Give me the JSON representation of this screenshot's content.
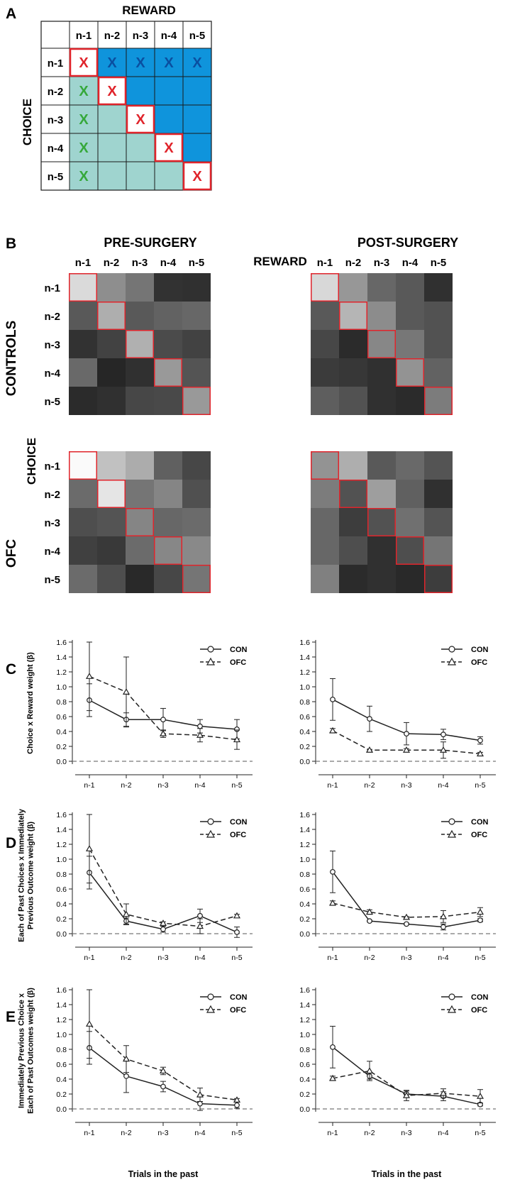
{
  "panel_letters": [
    "A",
    "B",
    "C",
    "D",
    "E"
  ],
  "colors": {
    "red": "#e0242b",
    "blue_fill": "#0f94dc",
    "blue_x": "#0a4fa0",
    "teal_fill": "#9fd4cf",
    "green_x": "#35a83a",
    "grid": "#1a1a1a",
    "zero_line": "#777777"
  },
  "panel_a": {
    "top_label": "REWARD",
    "side_label": "CHOICE",
    "col_labels": [
      "n-1",
      "n-2",
      "n-3",
      "n-4",
      "n-5"
    ],
    "row_labels": [
      "n-1",
      "n-2",
      "n-3",
      "n-4",
      "n-5"
    ],
    "mark": "X"
  },
  "panel_b": {
    "col_titles": [
      "PRE-SURGERY",
      "POST-SURGERY"
    ],
    "reward_label": "REWARD",
    "choice_label": "CHOICE",
    "row_titles": [
      "CONTROLS",
      "OFC"
    ],
    "tick_labels": [
      "n-1",
      "n-2",
      "n-3",
      "n-4",
      "n-5"
    ]
  },
  "chart_data": [
    {
      "type": "heatmap",
      "title": "CONTROLS PRE-SURGERY",
      "xlabel": "REWARD",
      "ylabel": "CHOICE",
      "x": [
        "n-1",
        "n-2",
        "n-3",
        "n-4",
        "n-5"
      ],
      "y": [
        "n-1",
        "n-2",
        "n-3",
        "n-4",
        "n-5"
      ],
      "values": [
        [
          0.86,
          0.53,
          0.42,
          0.13,
          0.12
        ],
        [
          0.3,
          0.67,
          0.3,
          0.34,
          0.36
        ],
        [
          0.13,
          0.2,
          0.68,
          0.24,
          0.2
        ],
        [
          0.37,
          0.08,
          0.12,
          0.58,
          0.28
        ],
        [
          0.1,
          0.12,
          0.22,
          0.23,
          0.58
        ]
      ],
      "scale": "grayscale 0 (black) to 1 (white)"
    },
    {
      "type": "heatmap",
      "title": "CONTROLS POST-SURGERY",
      "xlabel": "REWARD",
      "ylabel": "CHOICE",
      "x": [
        "n-1",
        "n-2",
        "n-3",
        "n-4",
        "n-5"
      ],
      "y": [
        "n-1",
        "n-2",
        "n-3",
        "n-4",
        "n-5"
      ],
      "values": [
        [
          0.85,
          0.57,
          0.36,
          0.3,
          0.12
        ],
        [
          0.3,
          0.7,
          0.52,
          0.3,
          0.27
        ],
        [
          0.22,
          0.1,
          0.5,
          0.43,
          0.27
        ],
        [
          0.17,
          0.15,
          0.12,
          0.55,
          0.34
        ],
        [
          0.32,
          0.27,
          0.12,
          0.1,
          0.45
        ]
      ],
      "scale": "grayscale 0 (black) to 1 (white)"
    },
    {
      "type": "heatmap",
      "title": "OFC PRE-SURGERY",
      "xlabel": "REWARD",
      "ylabel": "CHOICE",
      "x": [
        "n-1",
        "n-2",
        "n-3",
        "n-4",
        "n-5"
      ],
      "y": [
        "n-1",
        "n-2",
        "n-3",
        "n-4",
        "n-5"
      ],
      "values": [
        [
          1.0,
          0.75,
          0.66,
          0.33,
          0.22
        ],
        [
          0.38,
          0.91,
          0.42,
          0.49,
          0.26
        ],
        [
          0.25,
          0.28,
          0.49,
          0.36,
          0.38
        ],
        [
          0.19,
          0.16,
          0.38,
          0.5,
          0.51
        ],
        [
          0.38,
          0.25,
          0.09,
          0.22,
          0.42
        ]
      ],
      "scale": "grayscale 0 (black) to 1 (white)"
    },
    {
      "type": "heatmap",
      "title": "OFC POST-SURGERY",
      "xlabel": "REWARD",
      "ylabel": "CHOICE",
      "x": [
        "n-1",
        "n-2",
        "n-3",
        "n-4",
        "n-5"
      ],
      "y": [
        "n-1",
        "n-2",
        "n-3",
        "n-4",
        "n-5"
      ],
      "values": [
        [
          0.55,
          0.67,
          0.3,
          0.37,
          0.28
        ],
        [
          0.45,
          0.27,
          0.6,
          0.33,
          0.12
        ],
        [
          0.36,
          0.18,
          0.27,
          0.4,
          0.28
        ],
        [
          0.36,
          0.25,
          0.12,
          0.25,
          0.42
        ],
        [
          0.47,
          0.1,
          0.12,
          0.09,
          0.18
        ]
      ],
      "scale": "grayscale 0 (black) to 1 (white)"
    },
    {
      "type": "line",
      "panel": "C",
      "side": "pre",
      "ylabel": "Choice x Reward weight (β)",
      "xlabel": "",
      "categories": [
        "n-1",
        "n-2",
        "n-3",
        "n-4",
        "n-5"
      ],
      "ylim": [
        0,
        1.6
      ],
      "yticks": [
        "0.0",
        "0.2",
        "0.4",
        "0.6",
        "0.8",
        "1.0",
        "1.2",
        "1.4",
        "1.6"
      ],
      "legend": "top-right",
      "series": [
        {
          "name": "CON",
          "marker": "circle",
          "style": "solid",
          "values": [
            0.82,
            0.56,
            0.56,
            0.47,
            0.43
          ],
          "err": [
            0.22,
            0.09,
            0.15,
            0.09,
            0.13
          ]
        },
        {
          "name": "OFC",
          "marker": "triangle",
          "style": "dashed",
          "values": [
            1.14,
            0.93,
            0.37,
            0.35,
            0.29
          ],
          "err": [
            0.46,
            0.47,
            0.05,
            0.09,
            0.13
          ]
        }
      ]
    },
    {
      "type": "line",
      "panel": "C",
      "side": "post",
      "ylabel": "",
      "xlabel": "",
      "categories": [
        "n-1",
        "n-2",
        "n-3",
        "n-4",
        "n-5"
      ],
      "ylim": [
        0,
        1.6
      ],
      "yticks": [
        "0.0",
        "0.2",
        "0.4",
        "0.6",
        "0.8",
        "1.0",
        "1.2",
        "1.4",
        "1.6"
      ],
      "legend": "top-right",
      "series": [
        {
          "name": "CON",
          "marker": "circle",
          "style": "solid",
          "values": [
            0.83,
            0.57,
            0.37,
            0.36,
            0.28
          ],
          "err": [
            0.28,
            0.17,
            0.15,
            0.07,
            0.05
          ]
        },
        {
          "name": "OFC",
          "marker": "triangle",
          "style": "dashed",
          "values": [
            0.41,
            0.15,
            0.15,
            0.15,
            0.1
          ],
          "err": [
            0.03,
            0.01,
            0.02,
            0.11,
            0.02
          ]
        }
      ]
    },
    {
      "type": "line",
      "panel": "D",
      "side": "pre",
      "ylabel": "Each of Past Choices x Immediately Previous Outcome weight (β)",
      "xlabel": "",
      "categories": [
        "n-1",
        "n-2",
        "n-3",
        "n-4",
        "n-5"
      ],
      "ylim": [
        0,
        1.6
      ],
      "yticks": [
        "0.0",
        "0.2",
        "0.4",
        "0.6",
        "0.8",
        "1.0",
        "1.2",
        "1.4",
        "1.6"
      ],
      "legend": "top-right",
      "series": [
        {
          "name": "CON",
          "marker": "circle",
          "style": "solid",
          "values": [
            0.82,
            0.17,
            0.06,
            0.24,
            0.02
          ],
          "err": [
            0.22,
            0.04,
            0.04,
            0.09,
            0.07
          ]
        },
        {
          "name": "OFC",
          "marker": "triangle",
          "style": "dashed",
          "values": [
            1.14,
            0.26,
            0.14,
            0.1,
            0.24
          ],
          "err": [
            0.46,
            0.14,
            0.02,
            0.1,
            0.02
          ]
        }
      ]
    },
    {
      "type": "line",
      "panel": "D",
      "side": "post",
      "ylabel": "",
      "xlabel": "",
      "categories": [
        "n-1",
        "n-2",
        "n-3",
        "n-4",
        "n-5"
      ],
      "ylim": [
        0,
        1.6
      ],
      "yticks": [
        "0.0",
        "0.2",
        "0.4",
        "0.6",
        "0.8",
        "1.0",
        "1.2",
        "1.4",
        "1.6"
      ],
      "legend": "top-right",
      "series": [
        {
          "name": "CON",
          "marker": "circle",
          "style": "solid",
          "values": [
            0.83,
            0.17,
            0.13,
            0.09,
            0.18
          ],
          "err": [
            0.28,
            0.01,
            0.01,
            0.04,
            0.02
          ]
        },
        {
          "name": "OFC",
          "marker": "triangle",
          "style": "dashed",
          "values": [
            0.41,
            0.29,
            0.22,
            0.23,
            0.29
          ],
          "err": [
            0.03,
            0.03,
            0.01,
            0.08,
            0.06
          ]
        }
      ]
    },
    {
      "type": "line",
      "panel": "E",
      "side": "pre",
      "ylabel": "Immediately Previous Choice x Each of Past Outcomes weight (β)",
      "xlabel": "Trials in the past",
      "categories": [
        "n-1",
        "n-2",
        "n-3",
        "n-4",
        "n-5"
      ],
      "ylim": [
        0,
        1.6
      ],
      "yticks": [
        "0.0",
        "0.2",
        "0.4",
        "0.6",
        "0.8",
        "1.0",
        "1.2",
        "1.4",
        "1.6"
      ],
      "legend": "top-right",
      "series": [
        {
          "name": "CON",
          "marker": "circle",
          "style": "solid",
          "values": [
            0.82,
            0.44,
            0.3,
            0.07,
            0.05
          ],
          "err": [
            0.22,
            0.22,
            0.07,
            0.09,
            0.04
          ]
        },
        {
          "name": "OFC",
          "marker": "triangle",
          "style": "dashed",
          "values": [
            1.14,
            0.67,
            0.51,
            0.19,
            0.12
          ],
          "err": [
            0.46,
            0.18,
            0.05,
            0.09,
            0.02
          ]
        }
      ]
    },
    {
      "type": "line",
      "panel": "E",
      "side": "post",
      "ylabel": "",
      "xlabel": "Trials in the past",
      "categories": [
        "n-1",
        "n-2",
        "n-3",
        "n-4",
        "n-5"
      ],
      "ylim": [
        0,
        1.6
      ],
      "yticks": [
        "0.0",
        "0.2",
        "0.4",
        "0.6",
        "0.8",
        "1.0",
        "1.2",
        "1.4",
        "1.6"
      ],
      "legend": "top-right",
      "series": [
        {
          "name": "CON",
          "marker": "circle",
          "style": "solid",
          "values": [
            0.83,
            0.44,
            0.2,
            0.17,
            0.06
          ],
          "err": [
            0.28,
            0.04,
            0.04,
            0.06,
            0.02
          ]
        },
        {
          "name": "OFC",
          "marker": "triangle",
          "style": "dashed",
          "values": [
            0.41,
            0.51,
            0.18,
            0.21,
            0.17
          ],
          "err": [
            0.03,
            0.13,
            0.07,
            0.06,
            0.09
          ]
        }
      ]
    }
  ]
}
